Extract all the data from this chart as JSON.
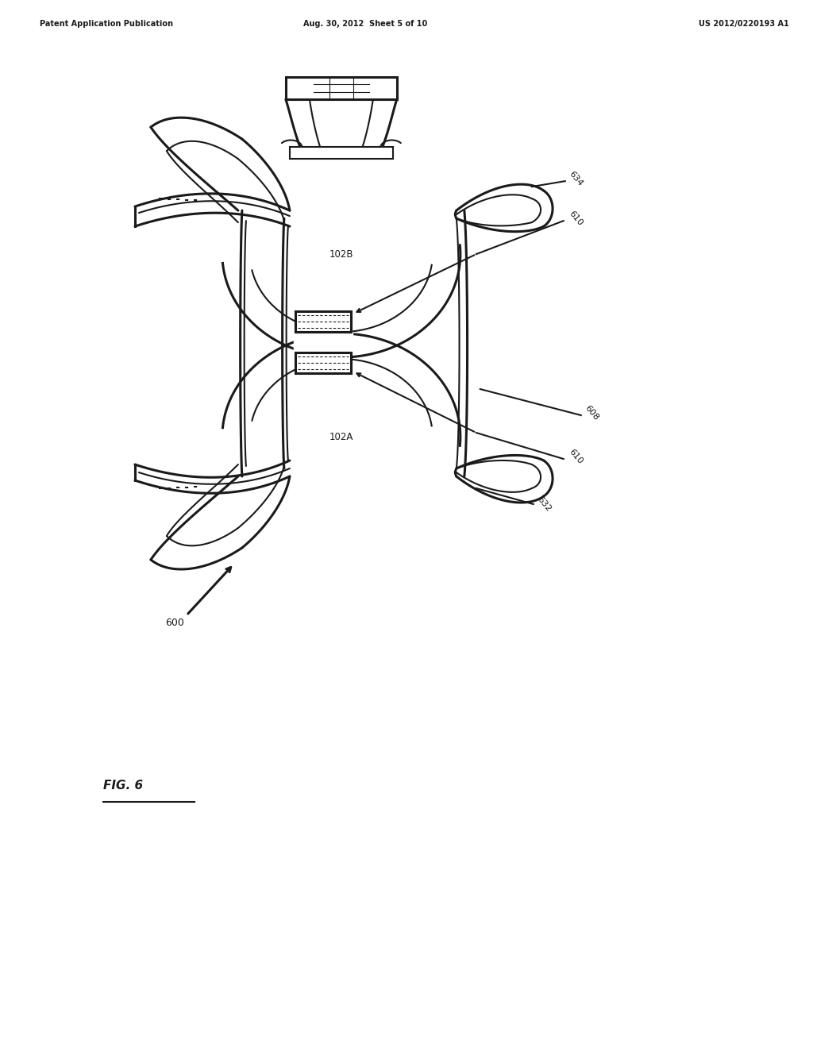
{
  "header_left": "Patent Application Publication",
  "header_center": "Aug. 30, 2012  Sheet 5 of 10",
  "header_right": "US 2012/0220193 A1",
  "fig_label": "FIG. 6",
  "ref_600": "600",
  "ref_608": "608",
  "ref_610_1": "610",
  "ref_610_2": "610",
  "ref_632": "632",
  "ref_634": "634",
  "ref_102A": "102A",
  "ref_102B": "102B",
  "bg_color": "#ffffff",
  "line_color": "#1a1a1a",
  "line_width": 1.5
}
